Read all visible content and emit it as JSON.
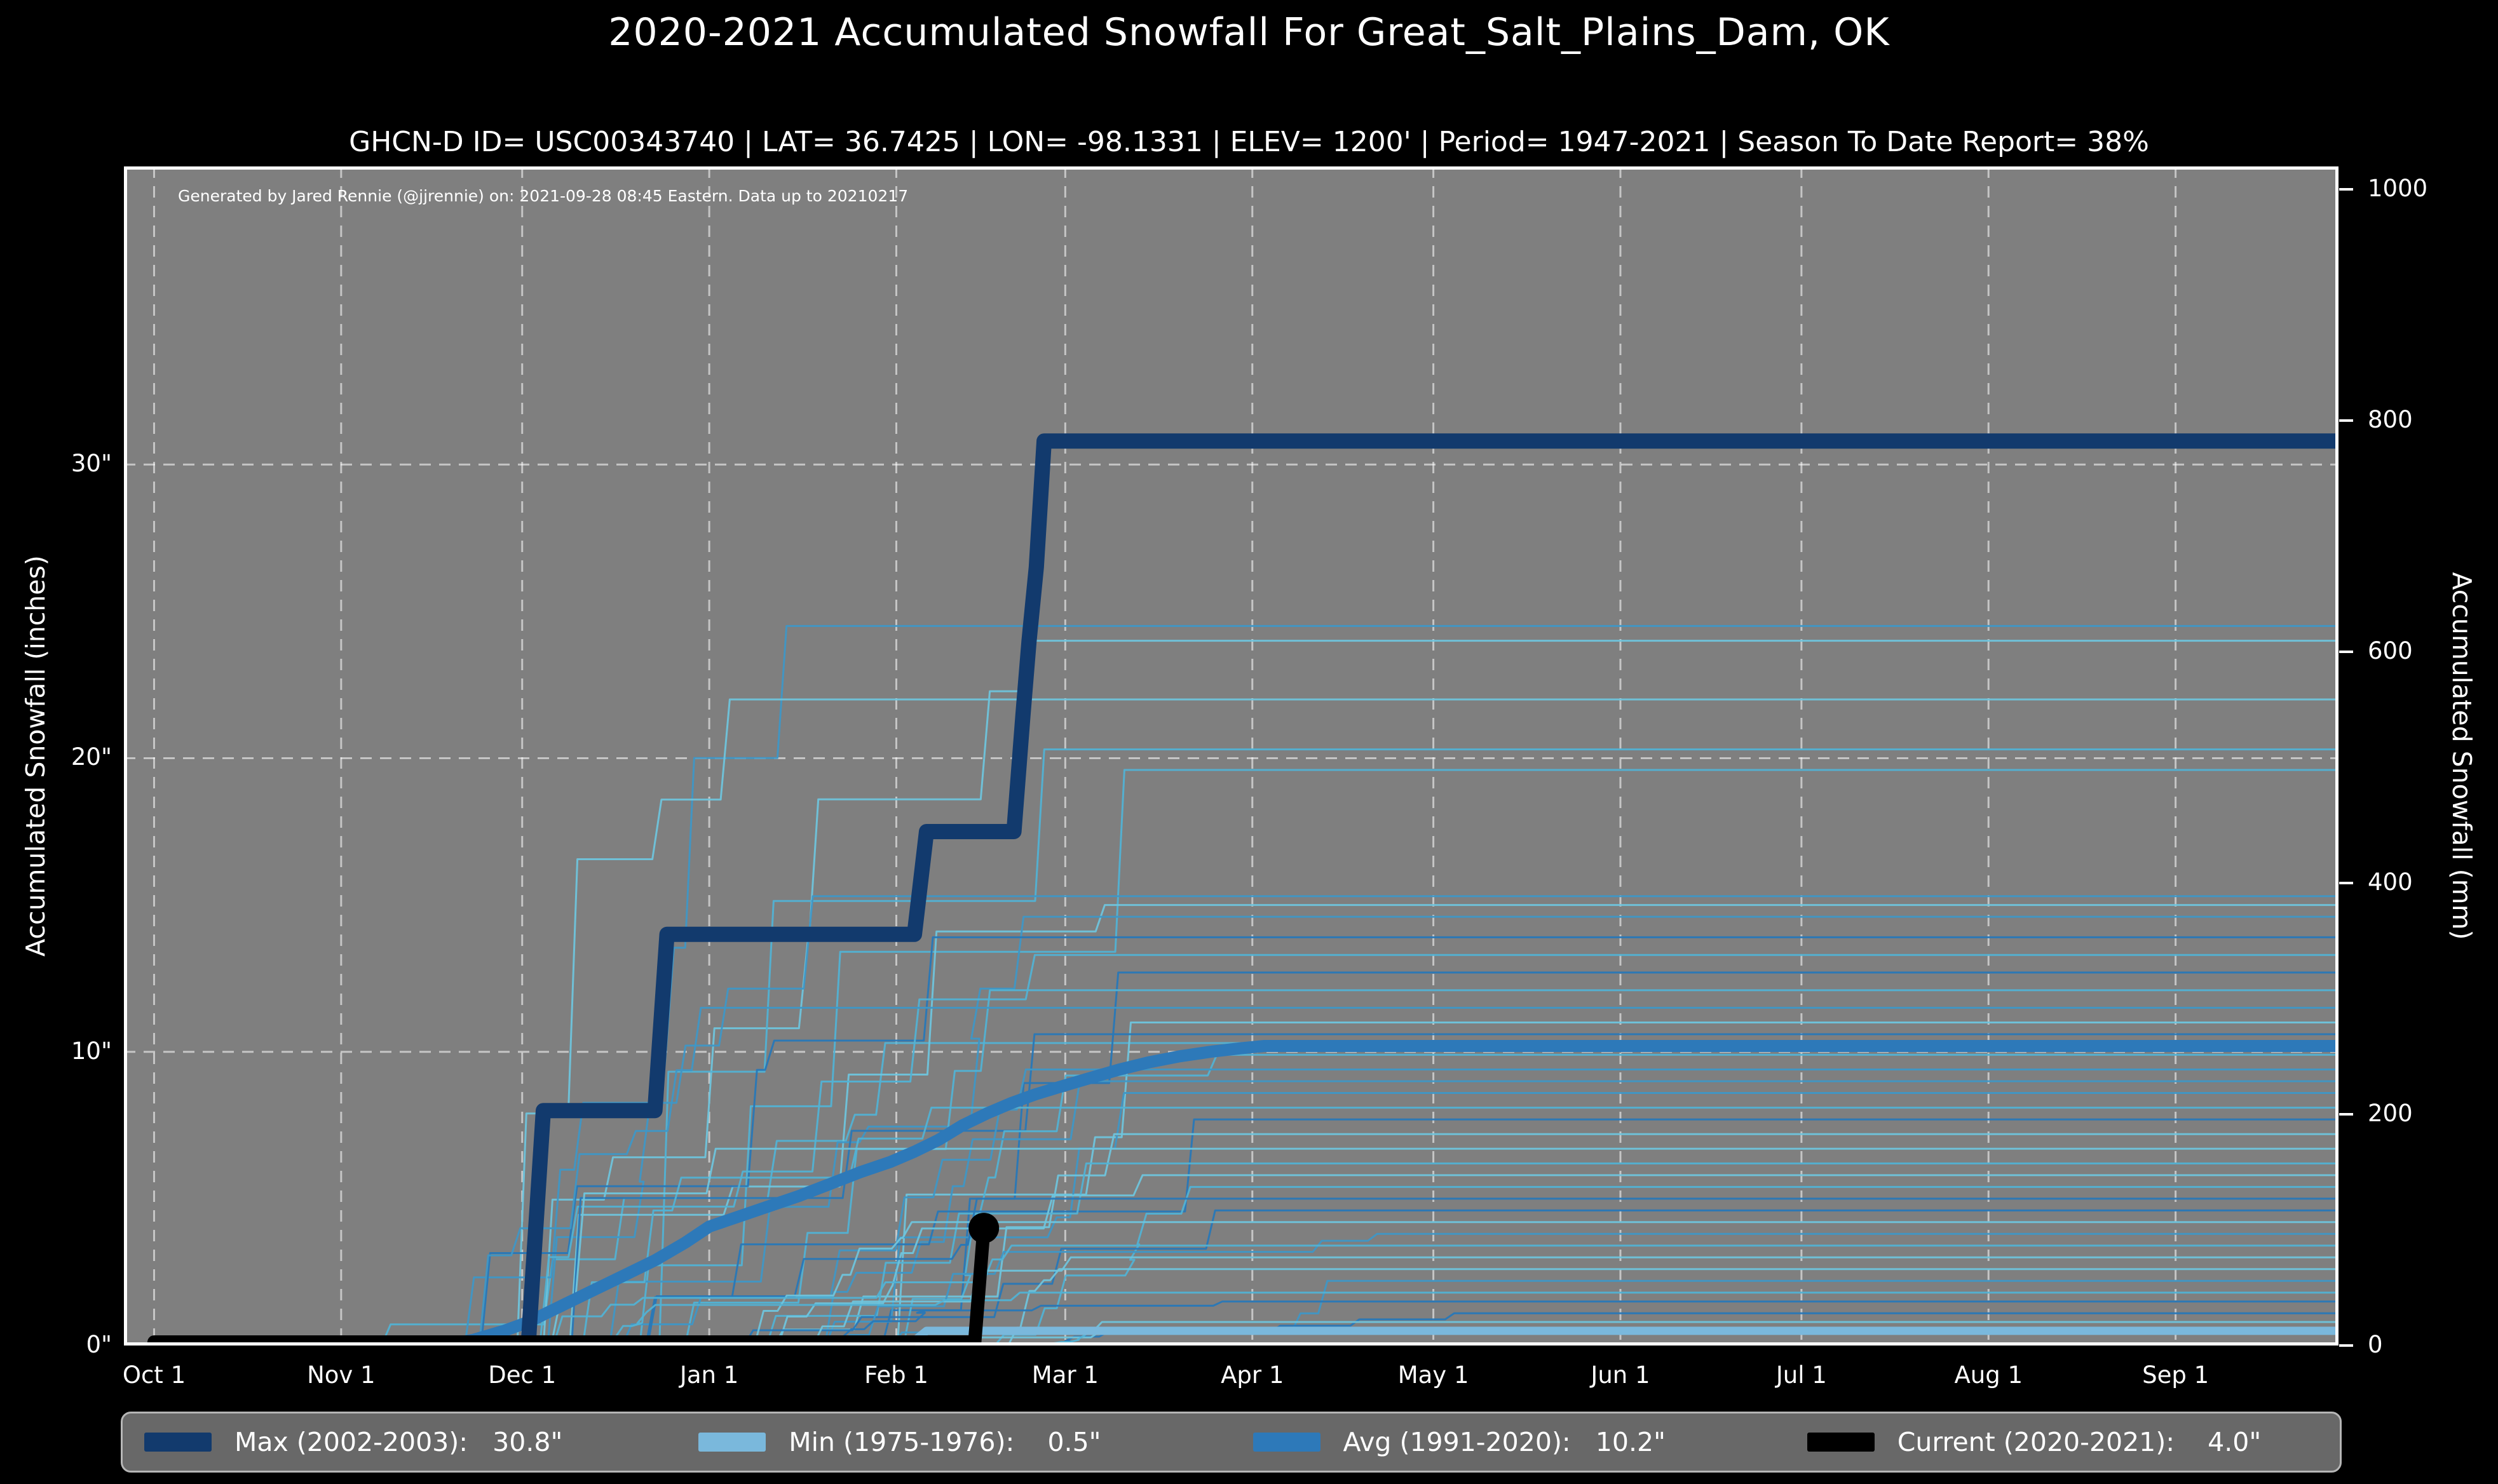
{
  "header": {
    "title": "2020-2021 Accumulated Snowfall For Great_Salt_Plains_Dam, OK",
    "subtitle": "GHCN-D ID= USC00343740 | LAT= 36.7425 | LON= -98.1331 | ELEV= 1200' | Period= 1947-2021 | Season To Date Report= 38%"
  },
  "plot": {
    "note": "Generated by Jared Rennie (@jjrennie) on: 2021-09-28 08:45 Eastern. Data up to 20210217",
    "background_color": "#7f7f7f",
    "figure_color": "#000000",
    "grid_color": "rgba(255,255,255,0.55)"
  },
  "colors": {
    "max": "#123a6d",
    "avg": "#2d79b9",
    "min": "#7ab8dc",
    "current": "#000000",
    "background_palette": [
      "#2878b8",
      "#3f97c6",
      "#52b2d4",
      "#6fc4dc"
    ]
  },
  "chart_data": {
    "type": "line",
    "title": "2020-2021 Accumulated Snowfall For Great_Salt_Plains_Dam, OK",
    "xlabel": "",
    "ylabel_left": "Accumulated Snowfall (inches)",
    "ylabel_right": "Accumulated Snowfall (mm)",
    "x_unit": "days since Oct 1",
    "xlim": [
      -5,
      362
    ],
    "ylim_inches": [
      0,
      40.15
    ],
    "ylim_mm": [
      0,
      1020
    ],
    "grid": true,
    "x_ticks": [
      {
        "label": "Oct 1",
        "day": 0
      },
      {
        "label": "Nov 1",
        "day": 31
      },
      {
        "label": "Dec 1",
        "day": 61
      },
      {
        "label": "Jan 1",
        "day": 92
      },
      {
        "label": "Feb 1",
        "day": 123
      },
      {
        "label": "Mar 1",
        "day": 151
      },
      {
        "label": "Apr 1",
        "day": 182
      },
      {
        "label": "May 1",
        "day": 212
      },
      {
        "label": "Jun 1",
        "day": 243
      },
      {
        "label": "Jul 1",
        "day": 273
      },
      {
        "label": "Aug 1",
        "day": 304
      },
      {
        "label": "Sep 1",
        "day": 335
      }
    ],
    "y_left_ticks": [
      {
        "label": "0\"",
        "value": 0
      },
      {
        "label": "10\"",
        "value": 10
      },
      {
        "label": "20\"",
        "value": 20
      },
      {
        "label": "30\"",
        "value": 30
      }
    ],
    "y_right_ticks_mm": [
      {
        "label": "0",
        "value": 0
      },
      {
        "label": "200",
        "value": 200
      },
      {
        "label": "400",
        "value": 400
      },
      {
        "label": "600",
        "value": 600
      },
      {
        "label": "800",
        "value": 800
      },
      {
        "label": "1000",
        "value": 1000
      }
    ],
    "series": [
      {
        "name": "Min (1975-1976)",
        "final_total_in": 0.5,
        "color_key": "min",
        "width": 13,
        "points": [
          [
            0,
            0
          ],
          [
            125,
            0
          ],
          [
            128,
            0.5
          ],
          [
            362,
            0.5
          ]
        ]
      },
      {
        "name": "Avg (1991-2020)",
        "final_total_in": 10.2,
        "color_key": "avg",
        "width": 19,
        "points": [
          [
            0,
            0
          ],
          [
            48,
            0
          ],
          [
            53,
            0.2
          ],
          [
            58,
            0.5
          ],
          [
            62,
            0.8
          ],
          [
            66,
            1.2
          ],
          [
            70,
            1.6
          ],
          [
            74,
            2.0
          ],
          [
            78,
            2.4
          ],
          [
            83,
            2.9
          ],
          [
            88,
            3.5
          ],
          [
            92,
            4.05
          ],
          [
            97,
            4.4
          ],
          [
            102,
            4.75
          ],
          [
            107,
            5.1
          ],
          [
            112,
            5.5
          ],
          [
            117,
            5.9
          ],
          [
            122,
            6.25
          ],
          [
            126,
            6.6
          ],
          [
            130,
            7.0
          ],
          [
            134,
            7.5
          ],
          [
            138,
            7.9
          ],
          [
            142,
            8.25
          ],
          [
            146,
            8.55
          ],
          [
            150,
            8.8
          ],
          [
            155,
            9.1
          ],
          [
            160,
            9.4
          ],
          [
            165,
            9.65
          ],
          [
            170,
            9.85
          ],
          [
            175,
            10.0
          ],
          [
            180,
            10.12
          ],
          [
            184,
            10.2
          ],
          [
            362,
            10.2
          ]
        ]
      },
      {
        "name": "Max (2002-2003)",
        "final_total_in": 30.8,
        "color_key": "max",
        "width": 24,
        "points": [
          [
            0,
            0
          ],
          [
            62,
            0
          ],
          [
            64.5,
            8
          ],
          [
            83,
            8
          ],
          [
            85,
            14
          ],
          [
            126,
            14
          ],
          [
            128,
            17.5
          ],
          [
            142.5,
            17.5
          ],
          [
            144,
            21.5
          ],
          [
            145,
            24
          ],
          [
            146.2,
            26.5
          ],
          [
            147.5,
            30.8
          ],
          [
            362,
            30.8
          ]
        ]
      },
      {
        "name": "Current (2020-2021)",
        "final_total_in": 4.0,
        "color_key": "current",
        "width": 21,
        "end_marker_radius": 24,
        "points": [
          [
            0,
            0.12
          ],
          [
            136,
            0.12
          ],
          [
            137.5,
            4.0
          ]
        ]
      }
    ],
    "background_seasons": {
      "description": "thin step lines, one per historical season 1947-2021",
      "line_width": 3,
      "seasons": [
        {
          "start": 36,
          "total": 10.3
        },
        {
          "start": 40,
          "total": 24.5
        },
        {
          "start": 55,
          "total": 24.0
        },
        {
          "start": 45,
          "total": 22.0
        },
        {
          "start": 60,
          "total": 20.3
        },
        {
          "start": 70,
          "total": 19.6
        },
        {
          "start": 50,
          "total": 15.3
        },
        {
          "start": 65,
          "total": 15.0
        },
        {
          "start": 75,
          "total": 14.6
        },
        {
          "start": 42,
          "total": 13.9
        },
        {
          "start": 58,
          "total": 13.3
        },
        {
          "start": 80,
          "total": 12.7
        },
        {
          "start": 62,
          "total": 12.1
        },
        {
          "start": 48,
          "total": 11.5
        },
        {
          "start": 85,
          "total": 11.0
        },
        {
          "start": 68,
          "total": 10.6
        },
        {
          "start": 90,
          "total": 9.9
        },
        {
          "start": 56,
          "total": 9.4
        },
        {
          "start": 72,
          "total": 9.0
        },
        {
          "start": 95,
          "total": 8.6
        },
        {
          "start": 64,
          "total": 8.1
        },
        {
          "start": 78,
          "total": 7.7
        },
        {
          "start": 100,
          "total": 7.2
        },
        {
          "start": 52,
          "total": 6.7
        },
        {
          "start": 88,
          "total": 6.2
        },
        {
          "start": 70,
          "total": 5.8
        },
        {
          "start": 105,
          "total": 5.4
        },
        {
          "start": 60,
          "total": 5.0
        },
        {
          "start": 92,
          "total": 4.6
        },
        {
          "start": 76,
          "total": 4.2
        },
        {
          "start": 110,
          "total": 3.8
        },
        {
          "start": 66,
          "total": 3.4
        },
        {
          "start": 98,
          "total": 3.0
        },
        {
          "start": 82,
          "total": 2.6
        },
        {
          "start": 115,
          "total": 2.2
        },
        {
          "start": 58,
          "total": 1.8
        },
        {
          "start": 102,
          "total": 1.5
        },
        {
          "start": 120,
          "total": 1.1
        },
        {
          "start": 86,
          "total": 0.8
        },
        {
          "start": 125,
          "total": 0.6
        }
      ]
    }
  },
  "legend": {
    "items": [
      {
        "name": "max",
        "label": "Max (2002-2003):   30.8\"",
        "color_key": "max"
      },
      {
        "name": "min",
        "label": "Min (1975-1976):    0.5\"",
        "color_key": "min"
      },
      {
        "name": "avg",
        "label": "Avg (1991-2020):   10.2\"",
        "color_key": "avg"
      },
      {
        "name": "current",
        "label": "Current (2020-2021):    4.0\"",
        "color_key": "current"
      }
    ]
  }
}
